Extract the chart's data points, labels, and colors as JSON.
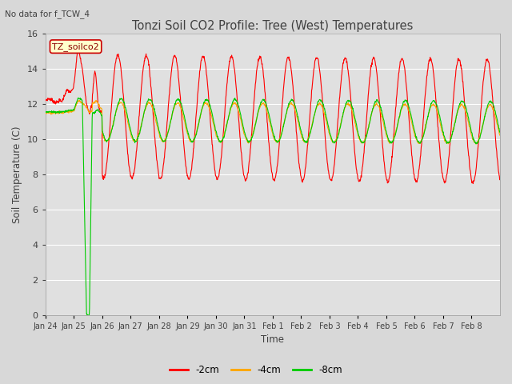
{
  "title": "Tonzi Soil CO2 Profile: Tree (West) Temperatures",
  "subtitle": "No data for f_TCW_4",
  "xlabel": "Time",
  "ylabel": "Soil Temperature (C)",
  "legend_label": "TZ_soilco2",
  "ylim": [
    0,
    16
  ],
  "yticks": [
    0,
    2,
    4,
    6,
    8,
    10,
    12,
    14,
    16
  ],
  "x_labels": [
    "Jan 24",
    "Jan 25",
    "Jan 26",
    "Jan 27",
    "Jan 28",
    "Jan 29",
    "Jan 30",
    "Jan 31",
    "Feb 1",
    "Feb 2",
    "Feb 3",
    "Feb 4",
    "Feb 5",
    "Feb 6",
    "Feb 7",
    "Feb 8"
  ],
  "series": {
    "neg2cm": {
      "color": "#ff0000",
      "label": "-2cm",
      "linewidth": 0.8
    },
    "neg4cm": {
      "color": "#ffa500",
      "label": "-4cm",
      "linewidth": 0.8
    },
    "neg8cm": {
      "color": "#00cc00",
      "label": "-8cm",
      "linewidth": 0.8
    }
  },
  "fig_bg_color": "#d8d8d8",
  "plot_bg_color": "#e0e0e0",
  "grid_color": "#ffffff",
  "title_color": "#404040",
  "axis_label_color": "#404040",
  "tick_label_color": "#404040"
}
